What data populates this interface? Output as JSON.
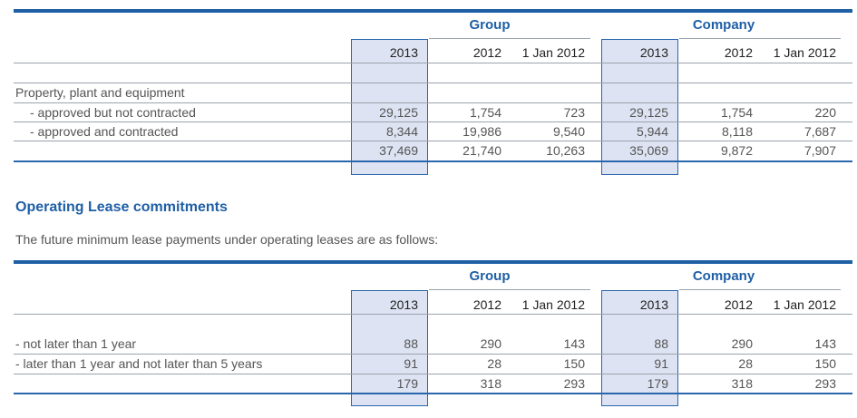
{
  "capital_commitments": {
    "group_header": "Group",
    "company_header": "Company",
    "columns": [
      "2013",
      "2012",
      "1 Jan 2012",
      "2013",
      "2012",
      "1 Jan 2012"
    ],
    "section_label": "Property, plant and equipment",
    "rows": [
      {
        "label": "- approved but not contracted",
        "values": [
          "29,125",
          "1,754",
          "723",
          "29,125",
          "1,754",
          "220"
        ]
      },
      {
        "label": "- approved and contracted",
        "values": [
          "8,344",
          "19,986",
          "9,540",
          "5,944",
          "8,118",
          "7,687"
        ]
      }
    ],
    "totals": [
      "37,469",
      "21,740",
      "10,263",
      "35,069",
      "9,872",
      "7,907"
    ]
  },
  "operating_leases": {
    "title": "Operating Lease commitments",
    "intro": "The future minimum lease payments under operating leases are as follows:",
    "group_header": "Group",
    "company_header": "Company",
    "columns": [
      "2013",
      "2012",
      "1 Jan 2012",
      "2013",
      "2012",
      "1 Jan 2012"
    ],
    "rows": [
      {
        "label": "- not later than 1 year",
        "values": [
          "88",
          "290",
          "143",
          "88",
          "290",
          "143"
        ]
      },
      {
        "label": "- later than 1 year and not later than 5 years",
        "values": [
          "91",
          "28",
          "150",
          "91",
          "28",
          "150"
        ]
      }
    ],
    "totals": [
      "179",
      "318",
      "293",
      "179",
      "318",
      "293"
    ]
  }
}
